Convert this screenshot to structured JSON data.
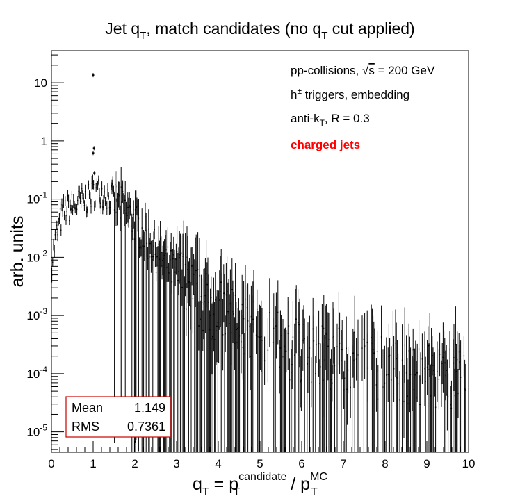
{
  "chart_data": {
    "type": "scatter",
    "title": {
      "main": "Jet q",
      "main_sub": "T",
      "rest": ", match candidates (no q",
      "rest_sub": "T",
      "end": " cut applied)"
    },
    "xlabel": {
      "q": "q",
      "q_sub": "T",
      "eq": " = p",
      "p1_sup": "candidate",
      "p1_sub": "T",
      "slash": " / p",
      "p2_sup": "MC",
      "p2_sub": "T"
    },
    "ylabel": "arb. units",
    "xlim": [
      0,
      10
    ],
    "ylim_log10": [
      -5.35,
      1.55
    ],
    "yscale": "log",
    "x_ticks": [
      "0",
      "1",
      "2",
      "3",
      "4",
      "5",
      "6",
      "7",
      "8",
      "9",
      "10"
    ],
    "y_ticks": [
      {
        "base": "10",
        "exp": "-5",
        "value": 1e-05
      },
      {
        "base": "10",
        "exp": "-4",
        "value": 0.0001
      },
      {
        "base": "10",
        "exp": "-3",
        "value": 0.001
      },
      {
        "base": "10",
        "exp": "-2",
        "value": 0.01
      },
      {
        "base": "10",
        "exp": "-1",
        "value": 0.1
      },
      {
        "base": "1",
        "exp": "",
        "value": 1
      },
      {
        "base": "10",
        "exp": "",
        "value": 10
      }
    ],
    "annotations": {
      "line1": {
        "pre": "pp-collisions, ",
        "sqrt": "√",
        "s": "s",
        "post": " = 200 GeV"
      },
      "line2": {
        "h": "h",
        "sup": "±",
        "post": " triggers, embedding"
      },
      "line3": {
        "pre": "anti-k",
        "sub": "T",
        "post": ", R = 0.3"
      },
      "line4": "charged jets",
      "line4_color": "#ff0000"
    },
    "stats": {
      "mean_label": "Mean",
      "mean_value": "1.149",
      "rms_label": "RMS",
      "rms_value": "0.7361",
      "border_color": "#cc0000"
    },
    "envelope": {
      "x": [
        0.0,
        0.1,
        0.2,
        0.3,
        0.4,
        0.5,
        0.6,
        0.7,
        0.8,
        0.9,
        1.0,
        1.1,
        1.2,
        1.3,
        1.5,
        1.7,
        2.0,
        2.3,
        2.6,
        3.0,
        3.5,
        4.0,
        4.5,
        5.0,
        5.5,
        6.0,
        6.5,
        7.0,
        7.5,
        8.0,
        8.5,
        9.0,
        9.5,
        10.0
      ],
      "y": [
        0.008,
        0.02,
        0.04,
        0.06,
        0.07,
        0.075,
        0.08,
        0.09,
        0.095,
        0.1,
        0.13,
        0.14,
        0.13,
        0.12,
        0.1,
        0.07,
        0.04,
        0.02,
        0.01,
        0.005,
        0.002,
        0.0012,
        0.0008,
        0.0005,
        0.0003,
        0.00025,
        0.0002,
        0.00018,
        0.00015,
        0.00012,
        0.0001,
        9e-05,
        9e-05,
        9e-05
      ]
    },
    "peaks": [
      {
        "x": 1.0,
        "y": 13.5
      },
      {
        "x": 1.0,
        "y": 0.62
      },
      {
        "x": 1.02,
        "y": 0.75
      },
      {
        "x": 1.03,
        "y": 0.28
      }
    ]
  }
}
